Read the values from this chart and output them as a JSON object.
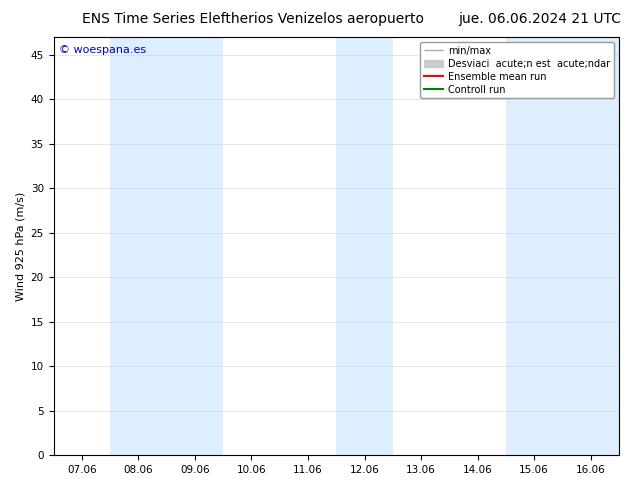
{
  "title_left": "ENS Time Series Eleftherios Venizelos aeropuerto",
  "title_right": "jue. 06.06.2024 21 UTC",
  "ylabel": "Wind 925 hPa (m/s)",
  "watermark": "© woespana.es",
  "x_labels": [
    "07.06",
    "08.06",
    "09.06",
    "10.06",
    "11.06",
    "12.06",
    "13.06",
    "14.06",
    "15.06",
    "16.06"
  ],
  "ylim": [
    0,
    47
  ],
  "yticks": [
    0,
    5,
    10,
    15,
    20,
    25,
    30,
    35,
    40,
    45
  ],
  "bg_color": "#ffffff",
  "plot_bg_color": "#ffffff",
  "shaded_columns_idx": [
    1,
    2,
    5,
    8,
    9
  ],
  "shaded_color": "#ddeeff",
  "legend_label_minmax": "min/max",
  "legend_label_std": "Desviaci  acute;n est  acute;ndar",
  "legend_label_ens": "Ensemble mean run",
  "legend_label_ctrl": "Controll run",
  "legend_color_minmax": "#aaaaaa",
  "legend_color_std": "#cccccc",
  "legend_color_ens": "#ff0000",
  "legend_color_ctrl": "#008000",
  "title_fontsize": 10,
  "axis_fontsize": 8,
  "tick_fontsize": 7.5,
  "watermark_color": "#0000cc",
  "watermark_fontsize": 8,
  "grid_color": "#cccccc",
  "spine_color": "#000000"
}
